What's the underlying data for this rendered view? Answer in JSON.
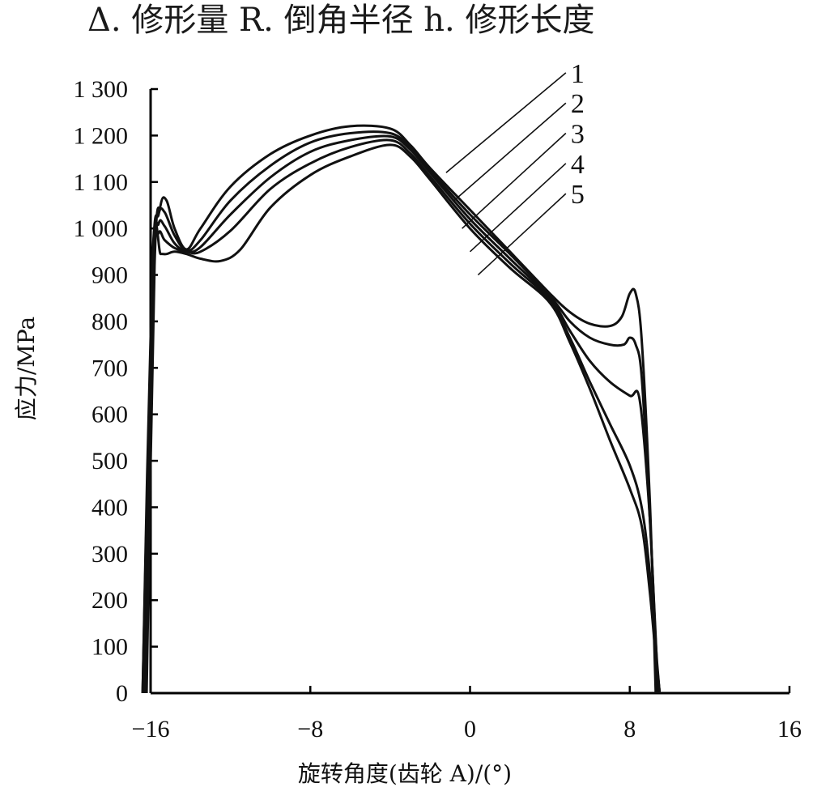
{
  "header": {
    "legend_line": "Δ. 修形量  R. 倒角半径  h. 修形长度"
  },
  "chart_data": {
    "type": "line",
    "title": "",
    "xlabel": "旋转角度(齿轮 A)/(°)",
    "ylabel": "应力/MPa",
    "xlim": [
      -16,
      16
    ],
    "ylim": [
      0,
      1300
    ],
    "xticks": [
      -16,
      -8,
      0,
      8,
      16
    ],
    "xtick_labels": [
      "−16",
      "−8",
      "0",
      "8",
      "16"
    ],
    "yticks": [
      0,
      100,
      200,
      300,
      400,
      500,
      600,
      700,
      800,
      900,
      1000,
      1100,
      1200,
      1300
    ],
    "ytick_labels": [
      "0",
      "100",
      "200",
      "300",
      "400",
      "500",
      "600",
      "700",
      "800",
      "900",
      "1 000",
      "1 100",
      "1 200",
      "1 300"
    ],
    "grid": false,
    "series": [
      {
        "name": "1",
        "x": [
          -16.2,
          -15.8,
          -15.5,
          -15.2,
          -14.8,
          -14.2,
          -13.5,
          -12,
          -10,
          -8,
          -6,
          -4,
          -3,
          -2,
          0,
          2,
          4,
          5,
          6,
          7,
          7.6,
          8.0,
          8.3,
          8.6,
          9.0,
          9.2,
          9.3
        ],
        "y": [
          0,
          920,
          1050,
          1060,
          1000,
          955,
          1000,
          1090,
          1160,
          1200,
          1220,
          1215,
          1180,
          1130,
          1040,
          950,
          860,
          820,
          795,
          790,
          810,
          860,
          860,
          760,
          420,
          150,
          0
        ]
      },
      {
        "name": "2",
        "x": [
          -16.3,
          -15.9,
          -15.6,
          -15.3,
          -14.8,
          -14.2,
          -13.5,
          -12,
          -10,
          -8,
          -6,
          -4,
          -3,
          -2,
          0,
          2,
          4,
          5,
          6,
          7,
          7.7,
          8.0,
          8.3,
          8.6,
          9.0,
          9.3,
          9.4
        ],
        "y": [
          0,
          910,
          1030,
          1035,
          985,
          952,
          975,
          1060,
          1135,
          1185,
          1205,
          1205,
          1175,
          1125,
          1030,
          945,
          855,
          800,
          765,
          750,
          750,
          765,
          750,
          680,
          380,
          120,
          0
        ]
      },
      {
        "name": "3",
        "x": [
          -16.3,
          -15.9,
          -15.6,
          -15.3,
          -14.8,
          -14.2,
          -13.5,
          -12,
          -10,
          -8,
          -6,
          -4,
          -3,
          -2,
          0,
          2,
          4,
          5,
          6,
          7,
          8.0,
          8.5,
          9.0,
          9.3,
          9.5
        ],
        "y": [
          0,
          905,
          1010,
          1005,
          968,
          950,
          960,
          1030,
          1110,
          1165,
          1190,
          1198,
          1170,
          1120,
          1020,
          935,
          850,
          780,
          715,
          670,
          640,
          630,
          380,
          110,
          0
        ]
      },
      {
        "name": "4",
        "x": [
          -16.4,
          -15.9,
          -15.6,
          -15.3,
          -14.8,
          -14.2,
          -13.5,
          -12,
          -10,
          -8,
          -6,
          -4,
          -3,
          -2,
          0,
          2,
          4,
          5,
          6,
          7,
          8.0,
          8.6,
          9.0,
          9.3,
          9.5
        ],
        "y": [
          0,
          900,
          990,
          975,
          958,
          950,
          950,
          995,
          1085,
          1140,
          1175,
          1190,
          1162,
          1112,
          1010,
          925,
          845,
          765,
          670,
          580,
          490,
          400,
          260,
          90,
          0
        ]
      },
      {
        "name": "5",
        "x": [
          -16.4,
          -15.9,
          -15.5,
          -15.2,
          -14.8,
          -14.2,
          -13.5,
          -12.5,
          -11.5,
          -10,
          -8,
          -6,
          -4,
          -3,
          -2,
          0,
          2,
          4,
          5,
          6,
          7,
          8.0,
          8.6,
          9.0,
          9.3,
          9.5
        ],
        "y": [
          0,
          940,
          945,
          945,
          950,
          945,
          935,
          930,
          955,
          1045,
          1115,
          1155,
          1180,
          1155,
          1105,
          1000,
          915,
          840,
          755,
          655,
          545,
          440,
          360,
          220,
          80,
          0
        ]
      }
    ],
    "callouts": [
      {
        "label": "1",
        "line_from": [
          -1.2,
          1120
        ],
        "line_to": [
          4.8,
          1335
        ]
      },
      {
        "label": "2",
        "line_from": [
          -0.8,
          1060
        ],
        "line_to": [
          4.8,
          1270
        ]
      },
      {
        "label": "3",
        "line_from": [
          -0.4,
          1000
        ],
        "line_to": [
          4.8,
          1205
        ]
      },
      {
        "label": "4",
        "line_from": [
          0.0,
          950
        ],
        "line_to": [
          4.8,
          1140
        ]
      },
      {
        "label": "5",
        "line_from": [
          0.4,
          900
        ],
        "line_to": [
          4.8,
          1075
        ]
      }
    ]
  }
}
